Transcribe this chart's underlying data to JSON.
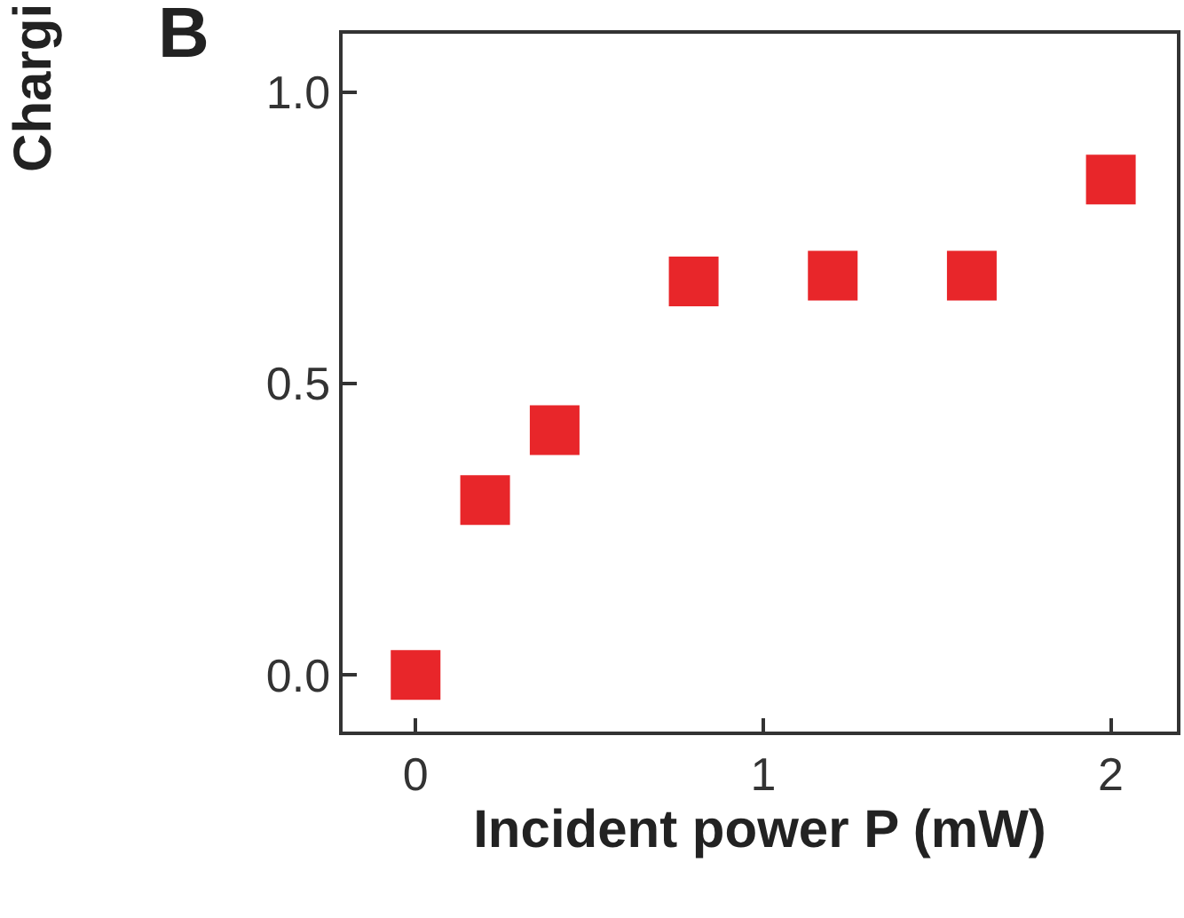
{
  "chart_data": {
    "type": "scatter",
    "title": "B",
    "xlabel": "Incident power P (mW)",
    "ylabel": "Chargi",
    "x": [
      0,
      0.2,
      0.4,
      0.8,
      1.2,
      1.6,
      2.0
    ],
    "series": [
      {
        "color": "#e8262a",
        "values": [
          0.0,
          0.3,
          0.42,
          0.675,
          0.685,
          0.685,
          0.85
        ]
      }
    ],
    "xlim": [
      -0.21,
      2.19
    ],
    "ylim": [
      -0.097,
      1.1
    ],
    "xticks": [
      {
        "value": 0,
        "label": "0"
      },
      {
        "value": 1,
        "label": "1"
      },
      {
        "value": 2,
        "label": "2"
      }
    ],
    "yticks": [
      {
        "value": 0,
        "label": "0.0"
      },
      {
        "value": 0.5,
        "label": "0.5"
      },
      {
        "value": 1,
        "label": "1.0"
      }
    ],
    "marker": "square"
  }
}
